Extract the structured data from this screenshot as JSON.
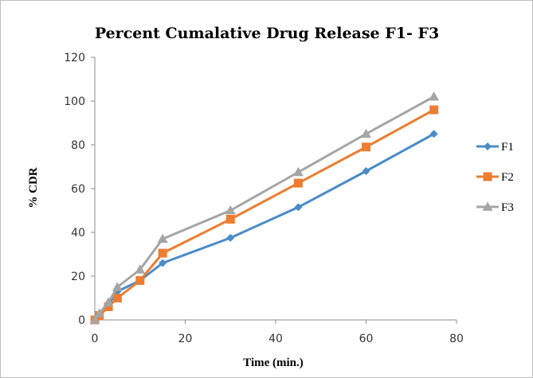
{
  "chart_data": {
    "type": "line",
    "title": "Percent Cumalative  Drug Release F1- F3",
    "xlabel": "Time (min.)",
    "ylabel": "% CDR",
    "xlim": [
      0,
      80
    ],
    "ylim": [
      0,
      120
    ],
    "x_ticks": [
      0,
      20,
      40,
      60,
      80
    ],
    "y_ticks": [
      0,
      20,
      40,
      60,
      80,
      100,
      120
    ],
    "grid": false,
    "legend_position": "right",
    "x": [
      0,
      1,
      3,
      5,
      10,
      15,
      30,
      45,
      60,
      75
    ],
    "series": [
      {
        "name": "F1",
        "color": "#4a8bc8",
        "marker": "diamond",
        "values": [
          0,
          2,
          7,
          13,
          18,
          26,
          37.5,
          51.5,
          68,
          85
        ]
      },
      {
        "name": "F2",
        "color": "#ed7d31",
        "marker": "square",
        "values": [
          0,
          2,
          6,
          10,
          18,
          30.5,
          46,
          62.5,
          79,
          96
        ]
      },
      {
        "name": "F3",
        "color": "#a5a5a5",
        "marker": "triangle",
        "values": [
          0,
          3,
          8,
          15,
          23,
          37,
          50,
          67.5,
          85,
          102
        ]
      }
    ]
  }
}
